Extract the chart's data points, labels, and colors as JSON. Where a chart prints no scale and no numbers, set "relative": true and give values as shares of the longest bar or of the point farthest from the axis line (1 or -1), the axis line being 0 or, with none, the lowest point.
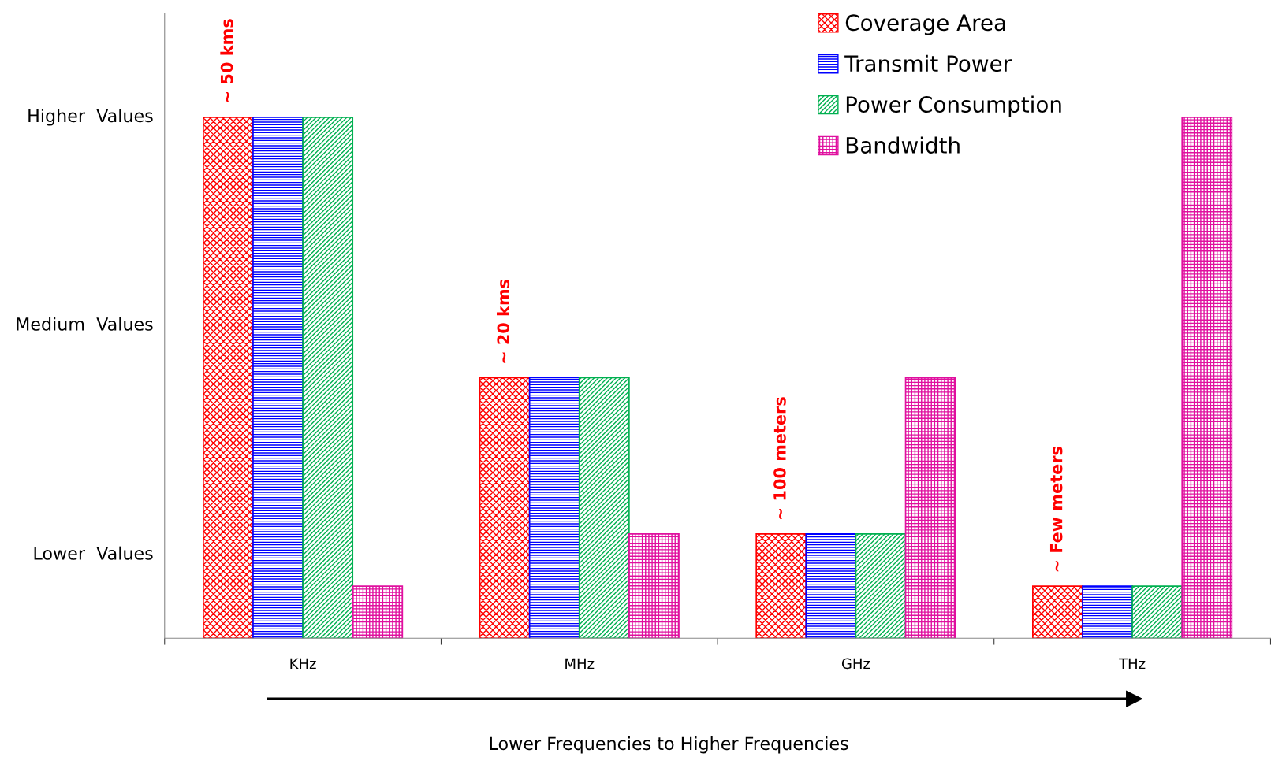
{
  "chart_data": {
    "type": "bar",
    "xlabel": "Lower Frequencies to Higher Frequencies",
    "categories": [
      "KHz",
      "MHz",
      "GHz",
      "THz"
    ],
    "relative": true,
    "series": [
      {
        "name": "Coverage Area",
        "color": "#ff0000",
        "values": [
          1,
          0.5,
          0.2,
          0.1
        ]
      },
      {
        "name": "Transmit Power",
        "color": "#0000ff",
        "values": [
          1,
          0.5,
          0.2,
          0.1
        ]
      },
      {
        "name": "Power Consumption",
        "color": "#00b050",
        "values": [
          1,
          0.5,
          0.2,
          0.1
        ]
      },
      {
        "name": "Bandwidth",
        "color": "#e0109f",
        "values": [
          0.1,
          0.2,
          0.5,
          1
        ]
      }
    ],
    "annotations": [
      "~ 50 kms",
      "~ 20 kms",
      "~ 100 meters",
      "~ Few meters",
      "Higher  Values",
      "Medium  Values",
      "Lower  Values"
    ],
    "legend": "top right",
    "grid": false
  }
}
